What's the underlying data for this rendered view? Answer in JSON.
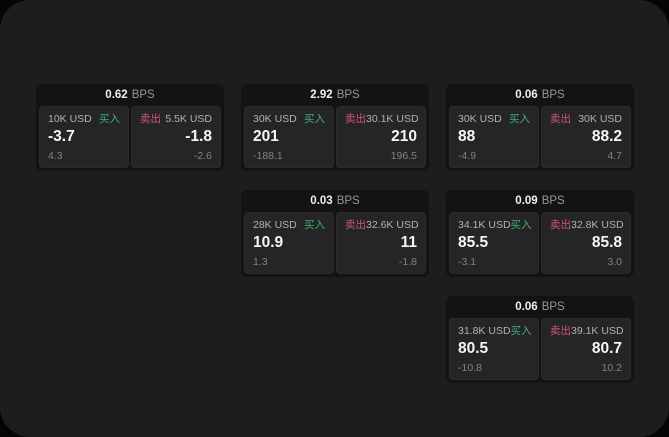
{
  "labels": {
    "bps": "BPS",
    "buy": "买入",
    "sell": "卖出"
  },
  "colors": {
    "buy_green": "#3fb06f",
    "sell_red": "#d0566e",
    "stage_bg": "#1d1d1f",
    "card_bg": "#131314",
    "panel_bg": "#252528"
  },
  "cards": [
    {
      "bps": "0.62",
      "buy": {
        "amount": "10K USD",
        "price": "-3.7",
        "sub": "4.3"
      },
      "sell": {
        "amount": "5.5K USD",
        "price": "-1.8",
        "sub": "-2.6"
      }
    },
    {
      "bps": "2.92",
      "buy": {
        "amount": "30K USD",
        "price": "201",
        "sub": "-188.1"
      },
      "sell": {
        "amount": "30.1K USD",
        "price": "210",
        "sub": "196.5"
      }
    },
    {
      "bps": "0.06",
      "buy": {
        "amount": "30K USD",
        "price": "88",
        "sub": "-4.9"
      },
      "sell": {
        "amount": "30K USD",
        "price": "88.2",
        "sub": "4.7"
      }
    },
    {
      "bps": "0.03",
      "buy": {
        "amount": "28K USD",
        "price": "10.9",
        "sub": "1.3"
      },
      "sell": {
        "amount": "32.6K USD",
        "price": "11",
        "sub": "-1.8"
      }
    },
    {
      "bps": "0.09",
      "buy": {
        "amount": "34.1K USD",
        "price": "85.5",
        "sub": "-3.1"
      },
      "sell": {
        "amount": "32.8K USD",
        "price": "85.8",
        "sub": "3.0"
      }
    },
    {
      "bps": "0.06",
      "buy": {
        "amount": "31.8K USD",
        "price": "80.5",
        "sub": "-10.8"
      },
      "sell": {
        "amount": "39.1K USD",
        "price": "80.7",
        "sub": "10.2"
      }
    }
  ]
}
